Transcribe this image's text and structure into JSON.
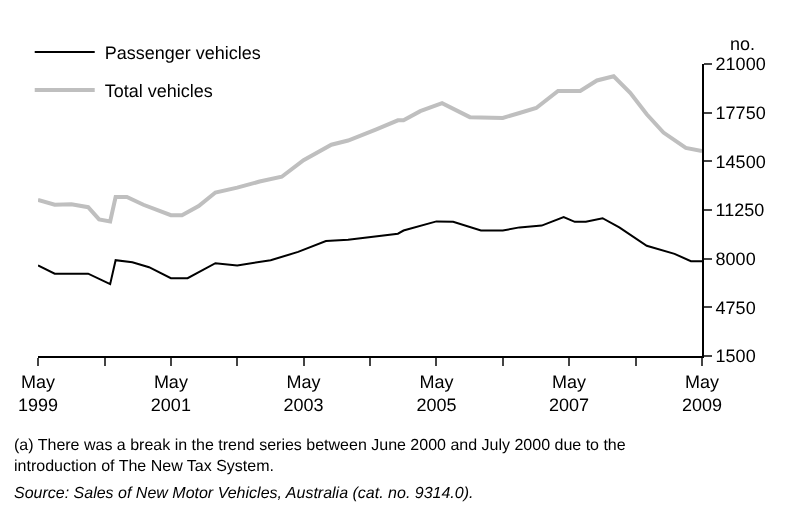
{
  "chart_data": {
    "type": "line",
    "ylabel": "no.",
    "x": [
      "1999-05",
      "1999-08",
      "1999-11",
      "2000-02",
      "2000-04",
      "2000-06",
      "2000-07",
      "2000-09",
      "2000-10",
      "2000-12",
      "2001-01",
      "2001-05",
      "2001-07",
      "2001-08",
      "2001-10",
      "2002-01",
      "2002-05",
      "2002-09",
      "2002-11",
      "2003-01",
      "2003-04",
      "2003-05",
      "2003-09",
      "2003-10",
      "2004-01",
      "2004-06",
      "2004-10",
      "2004-11",
      "2005-02",
      "2005-05",
      "2005-06",
      "2005-08",
      "2005-11",
      "2006-01",
      "2006-05",
      "2006-08",
      "2006-11",
      "2006-12",
      "2007-03",
      "2007-04",
      "2007-06",
      "2007-07",
      "2007-08",
      "2007-10",
      "2007-11",
      "2008-01",
      "2008-02",
      "2008-04",
      "2008-07",
      "2008-10",
      "2008-12",
      "2009-02",
      "2009-03",
      "2009-05"
    ],
    "series": [
      {
        "name": "Passenger vehicles",
        "color": "#000000",
        "values": [
          7550,
          7000,
          null,
          7000,
          null,
          6300,
          7900,
          null,
          7760,
          null,
          7430,
          6700,
          null,
          6700,
          null,
          7700,
          7550,
          null,
          7900,
          null,
          8450,
          null,
          9180,
          null,
          9270,
          null,
          9670,
          9880,
          null,
          10490,
          null,
          10460,
          null,
          9880,
          9880,
          10090,
          null,
          10210,
          null,
          10780,
          10460,
          null,
          10460,
          null,
          10700,
          null,
          10090,
          null,
          8860,
          null,
          8320,
          null,
          7830,
          7830
        ]
      },
      {
        "name": "Total vehicles",
        "color": "#bfbfbf",
        "values": [
          11930,
          11600,
          11630,
          11440,
          10620,
          10490,
          12120,
          12120,
          null,
          11600,
          null,
          10900,
          10900,
          null,
          11510,
          12420,
          12740,
          13150,
          null,
          13470,
          null,
          14580,
          null,
          15610,
          15890,
          16620,
          17240,
          17240,
          17850,
          null,
          18380,
          null,
          17450,
          null,
          17400,
          17730,
          18060,
          null,
          19200,
          null,
          null,
          19200,
          null,
          19900,
          null,
          20180,
          null,
          19080,
          17640,
          16420,
          null,
          15400,
          null,
          15190
        ]
      }
    ],
    "xlim": [
      "1999-05",
      "2009-05"
    ],
    "xticks": [
      {
        "value": "1999-05",
        "label": "May\n1999"
      },
      {
        "value": "2000-05",
        "label": null
      },
      {
        "value": "2001-05",
        "label": "May\n2001"
      },
      {
        "value": "2002-05",
        "label": null
      },
      {
        "value": "2003-05",
        "label": "May\n2003"
      },
      {
        "value": "2004-05",
        "label": null
      },
      {
        "value": "2005-05",
        "label": "May\n2005"
      },
      {
        "value": "2006-05",
        "label": null
      },
      {
        "value": "2007-05",
        "label": "May\n2007"
      },
      {
        "value": "2008-05",
        "label": null
      },
      {
        "value": "2009-05",
        "label": "May\n2009"
      }
    ],
    "ylim": [
      1500,
      21000
    ],
    "yticks": [
      1500,
      4750,
      8000,
      11250,
      14500,
      17750,
      21000
    ],
    "grid": false,
    "legend": "top left",
    "marker": "none",
    "line_style": "solid",
    "annotations": [
      "(a) There was a break in the trend series between June 2000 and July 2000 due to the introduction of The New Tax System.",
      "Source: Sales of New Motor Vehicles, Australia (cat. no. 9314.0)."
    ]
  }
}
